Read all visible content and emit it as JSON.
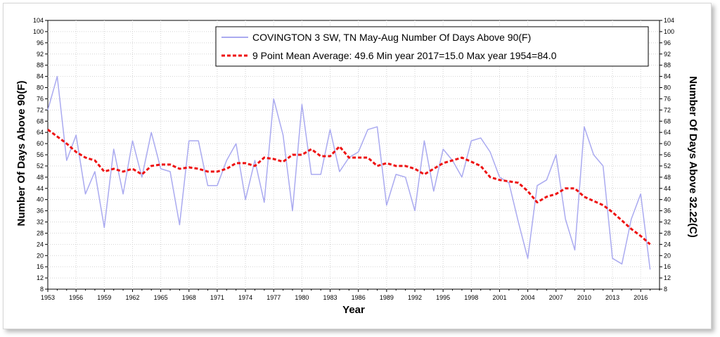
{
  "chart_data": {
    "type": "line",
    "xlabel": "Year",
    "ylabel_left": "Number Of Days Above 90(F)",
    "ylabel_right": "Number Of Days Above 32.22(C)",
    "xlim": [
      1953,
      2018
    ],
    "ylim": [
      8,
      104
    ],
    "x_tick_step": 3,
    "y_tick_step": 4,
    "grid": true,
    "legend_position": "top-right",
    "series": [
      {
        "name": "COVINGTON 3 SW, TN  May-Aug  Number Of Days Above 90(F)",
        "color": "#aaaaf0",
        "style": "solid",
        "x": [
          1953,
          1954,
          1955,
          1956,
          1957,
          1958,
          1959,
          1960,
          1961,
          1962,
          1963,
          1964,
          1965,
          1966,
          1967,
          1968,
          1969,
          1970,
          1971,
          1972,
          1973,
          1974,
          1975,
          1976,
          1977,
          1978,
          1979,
          1980,
          1981,
          1982,
          1983,
          1984,
          1985,
          1986,
          1987,
          1988,
          1989,
          1990,
          1991,
          1992,
          1993,
          1994,
          1995,
          1996,
          1997,
          1998,
          1999,
          2000,
          2001,
          2002,
          2003,
          2004,
          2005,
          2006,
          2007,
          2008,
          2009,
          2010,
          2011,
          2012,
          2013,
          2014,
          2015,
          2016,
          2017
        ],
        "values": [
          72,
          84,
          54,
          63,
          42,
          50,
          30,
          58,
          42,
          61,
          48,
          64,
          51,
          50,
          31,
          61,
          61,
          45,
          45,
          54,
          60,
          40,
          54,
          39,
          76,
          63,
          36,
          74,
          49,
          49,
          65,
          50,
          55,
          57,
          65,
          66,
          38,
          49,
          48,
          36,
          61,
          43,
          58,
          54,
          48,
          61,
          62,
          57,
          48,
          46,
          32,
          19,
          45,
          47,
          56,
          33,
          22,
          66,
          56,
          52,
          19,
          17,
          33,
          42,
          15
        ]
      },
      {
        "name": "9 Point Mean  Average: 49.6  Min year 2017=15.0  Max year 1954=84.0",
        "color": "#ee1111",
        "style": "dashed",
        "x": [
          1953,
          1954,
          1955,
          1956,
          1957,
          1958,
          1959,
          1960,
          1961,
          1962,
          1963,
          1964,
          1965,
          1966,
          1967,
          1968,
          1969,
          1970,
          1971,
          1972,
          1973,
          1974,
          1975,
          1976,
          1977,
          1978,
          1979,
          1980,
          1981,
          1982,
          1983,
          1984,
          1985,
          1986,
          1987,
          1988,
          1989,
          1990,
          1991,
          1992,
          1993,
          1994,
          1995,
          1996,
          1997,
          1998,
          1999,
          2000,
          2001,
          2002,
          2003,
          2004,
          2005,
          2006,
          2007,
          2008,
          2009,
          2010,
          2011,
          2012,
          2013,
          2014,
          2015,
          2016,
          2017
        ],
        "values": [
          65,
          62.5,
          60,
          57,
          55,
          54,
          50,
          51,
          50,
          51,
          49,
          52,
          52.5,
          52.5,
          51,
          51.5,
          51,
          50,
          50,
          51,
          53,
          53,
          52,
          55,
          54.5,
          53.5,
          56,
          56,
          58,
          55.5,
          55.5,
          59,
          55,
          55,
          55,
          52,
          53,
          52,
          52,
          51,
          49,
          51,
          53,
          54,
          55,
          53.5,
          52,
          48,
          47,
          46.5,
          46,
          43,
          39,
          41,
          42,
          44,
          44,
          41,
          39.5,
          38,
          35.5,
          32.5,
          29.5,
          27,
          24
        ]
      }
    ]
  }
}
